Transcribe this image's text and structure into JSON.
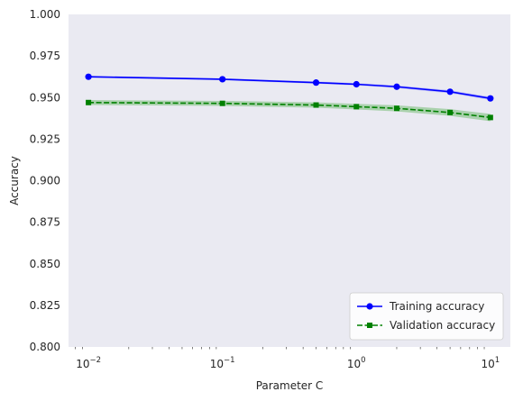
{
  "chart_data": {
    "type": "line",
    "xscale": "log",
    "x": [
      0.01,
      0.1,
      0.5,
      1,
      2,
      5,
      10
    ],
    "xlim": [
      0.0071,
      14.1
    ],
    "ylim": [
      0.8,
      1.0
    ],
    "xticks": [
      {
        "value": 0.01,
        "base": "10",
        "exp": "−2"
      },
      {
        "value": 0.1,
        "base": "10",
        "exp": "−1"
      },
      {
        "value": 1,
        "base": "10",
        "exp": "0"
      },
      {
        "value": 10,
        "base": "10",
        "exp": "1"
      }
    ],
    "yticks": [
      {
        "value": 0.8,
        "label": "0.800"
      },
      {
        "value": 0.825,
        "label": "0.825"
      },
      {
        "value": 0.85,
        "label": "0.850"
      },
      {
        "value": 0.875,
        "label": "0.875"
      },
      {
        "value": 0.9,
        "label": "0.900"
      },
      {
        "value": 0.925,
        "label": "0.925"
      },
      {
        "value": 0.95,
        "label": "0.950"
      },
      {
        "value": 0.975,
        "label": "0.975"
      },
      {
        "value": 1.0,
        "label": "1.000"
      }
    ],
    "xlabel": "Parameter C",
    "ylabel": "Accuracy",
    "grid": false,
    "legend_position": "bottom-right",
    "series": [
      {
        "name": "Training accuracy",
        "values": [
          0.9625,
          0.961,
          0.959,
          0.958,
          0.9565,
          0.9535,
          0.9495
        ],
        "band": [
          0.0006,
          0.0006,
          0.0007,
          0.0007,
          0.0008,
          0.0009,
          0.001
        ],
        "color": "#0000ff",
        "band_color": "#a0a0ff",
        "marker": "circle",
        "linestyle": "solid"
      },
      {
        "name": "Validation accuracy",
        "values": [
          0.947,
          0.9465,
          0.9455,
          0.9445,
          0.9435,
          0.941,
          0.938
        ],
        "band": [
          0.0015,
          0.0015,
          0.0016,
          0.0017,
          0.0018,
          0.002,
          0.0022
        ],
        "color": "#008000",
        "band_color": "#7fc07f",
        "marker": "square",
        "linestyle": "dashed"
      }
    ]
  },
  "colors": {
    "plot_background": "#eaeaf2"
  }
}
